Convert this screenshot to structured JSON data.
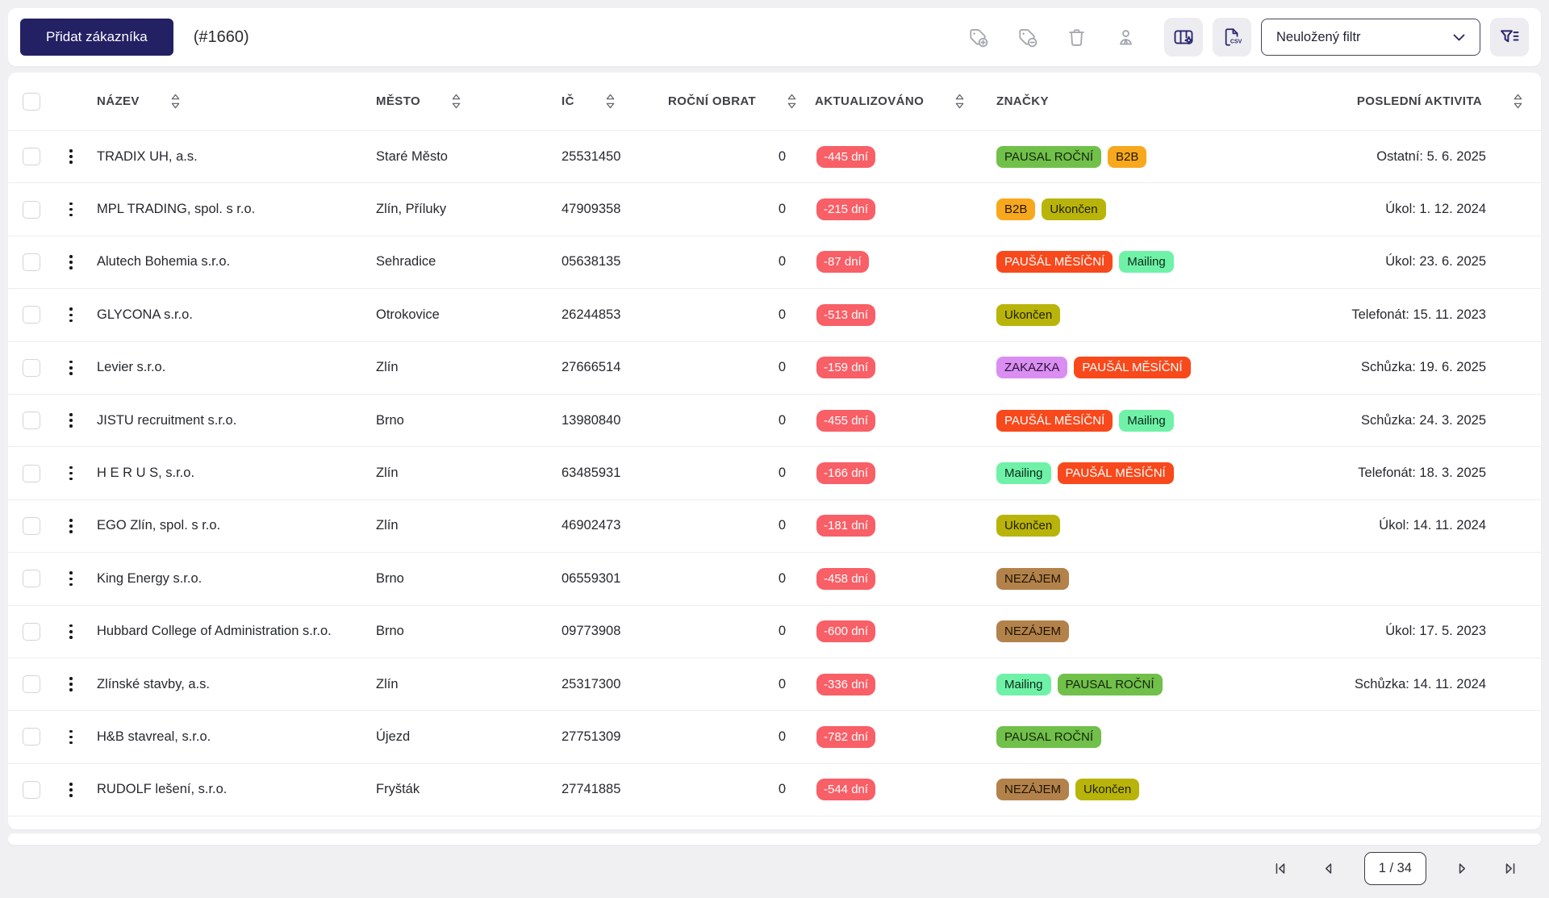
{
  "toolbar": {
    "add_button_label": "Přidat zákazníka",
    "record_count": "(#1660)",
    "filter_select_value": "Neuložený filtr",
    "icon_names": [
      "tag-add-icon",
      "tag-remove-icon",
      "trash-icon",
      "user-icon",
      "columns-settings-icon",
      "export-csv-icon",
      "filter-icon"
    ]
  },
  "table": {
    "columns": [
      {
        "label": "NÁZEV",
        "sortable": true
      },
      {
        "label": "MĚSTO",
        "sortable": true
      },
      {
        "label": "IČ",
        "sortable": true
      },
      {
        "label": "ROČNÍ OBRAT",
        "sortable": true
      },
      {
        "label": "AKTUALIZOVÁNO",
        "sortable": true
      },
      {
        "label": "ZNAČKY",
        "sortable": false
      },
      {
        "label": "POSLEDNÍ AKTIVITA",
        "sortable": true
      }
    ],
    "updated_badge_color": "#f85f66",
    "tag_colors": {
      "PAUSAL ROČNÍ": {
        "bg": "#70c04a",
        "fg": "#16230c"
      },
      "B2B": {
        "bg": "#f8a81d",
        "fg": "#241804"
      },
      "Ukončen": {
        "bg": "#b9b40a",
        "fg": "#232105"
      },
      "PAUŠÁL MĚSÍČNÍ": {
        "bg": "#f8491c",
        "fg": "#ffffff"
      },
      "Mailing": {
        "bg": "#6ff2a8",
        "fg": "#0b2a18"
      },
      "ZAKAZKA": {
        "bg": "#da8ef2",
        "fg": "#2a1233"
      },
      "NEZÁJEM": {
        "bg": "#b3824b",
        "fg": "#1f1504"
      }
    },
    "rows": [
      {
        "name": "TRADIX UH, a.s.",
        "city": "Staré Město",
        "ic": "25531450",
        "turnover": "0",
        "updated": "-445 dní",
        "tags": [
          "PAUSAL ROČNÍ",
          "B2B"
        ],
        "activity": "Ostatní: 5. 6. 2025"
      },
      {
        "name": "MPL TRADING, spol. s r.o.",
        "city": "Zlín, Příluky",
        "ic": "47909358",
        "turnover": "0",
        "updated": "-215 dní",
        "tags": [
          "B2B",
          "Ukončen"
        ],
        "activity": "Úkol: 1. 12. 2024"
      },
      {
        "name": "Alutech Bohemia s.r.o.",
        "city": "Sehradice",
        "ic": "05638135",
        "turnover": "0",
        "updated": "-87 dní",
        "tags": [
          "PAUŠÁL MĚSÍČNÍ",
          "Mailing"
        ],
        "activity": "Úkol: 23. 6. 2025"
      },
      {
        "name": "GLYCONA s.r.o.",
        "city": "Otrokovice",
        "ic": "26244853",
        "turnover": "0",
        "updated": "-513 dní",
        "tags": [
          "Ukončen"
        ],
        "activity": "Telefonát: 15. 11. 2023"
      },
      {
        "name": "Levier s.r.o.",
        "city": "Zlín",
        "ic": "27666514",
        "turnover": "0",
        "updated": "-159 dní",
        "tags": [
          "ZAKAZKA",
          "PAUŠÁL MĚSÍČNÍ"
        ],
        "activity": "Schůzka: 19. 6. 2025"
      },
      {
        "name": "JISTU recruitment s.r.o.",
        "city": "Brno",
        "ic": "13980840",
        "turnover": "0",
        "updated": "-455 dní",
        "tags": [
          "PAUŠÁL MĚSÍČNÍ",
          "Mailing"
        ],
        "activity": "Schůzka: 24. 3. 2025"
      },
      {
        "name": "H E R U S, s.r.o.",
        "city": "Zlín",
        "ic": "63485931",
        "turnover": "0",
        "updated": "-166 dní",
        "tags": [
          "Mailing",
          "PAUŠÁL MĚSÍČNÍ"
        ],
        "activity": "Telefonát: 18. 3. 2025"
      },
      {
        "name": "EGO Zlín, spol. s r.o.",
        "city": "Zlín",
        "ic": "46902473",
        "turnover": "0",
        "updated": "-181 dní",
        "tags": [
          "Ukončen"
        ],
        "activity": "Úkol: 14. 11. 2024"
      },
      {
        "name": "King Energy s.r.o.",
        "city": "Brno",
        "ic": "06559301",
        "turnover": "0",
        "updated": "-458 dní",
        "tags": [
          "NEZÁJEM"
        ],
        "activity": ""
      },
      {
        "name": "Hubbard College of Administration s.r.o.",
        "city": "Brno",
        "ic": "09773908",
        "turnover": "0",
        "updated": "-600 dní",
        "tags": [
          "NEZÁJEM"
        ],
        "activity": "Úkol: 17. 5. 2023"
      },
      {
        "name": "Zlínské stavby, a.s.",
        "city": "Zlín",
        "ic": "25317300",
        "turnover": "0",
        "updated": "-336 dní",
        "tags": [
          "Mailing",
          "PAUSAL ROČNÍ"
        ],
        "activity": "Schůzka: 14. 11. 2024"
      },
      {
        "name": "H&B stavreal, s.r.o.",
        "city": "Újezd",
        "ic": "27751309",
        "turnover": "0",
        "updated": "-782 dní",
        "tags": [
          "PAUSAL ROČNÍ"
        ],
        "activity": ""
      },
      {
        "name": "RUDOLF lešení, s.r.o.",
        "city": "Fryšták",
        "ic": "27741885",
        "turnover": "0",
        "updated": "-544 dní",
        "tags": [
          "NEZÁJEM",
          "Ukončen"
        ],
        "activity": ""
      }
    ]
  },
  "pagination": {
    "page_label": "1 / 34"
  }
}
